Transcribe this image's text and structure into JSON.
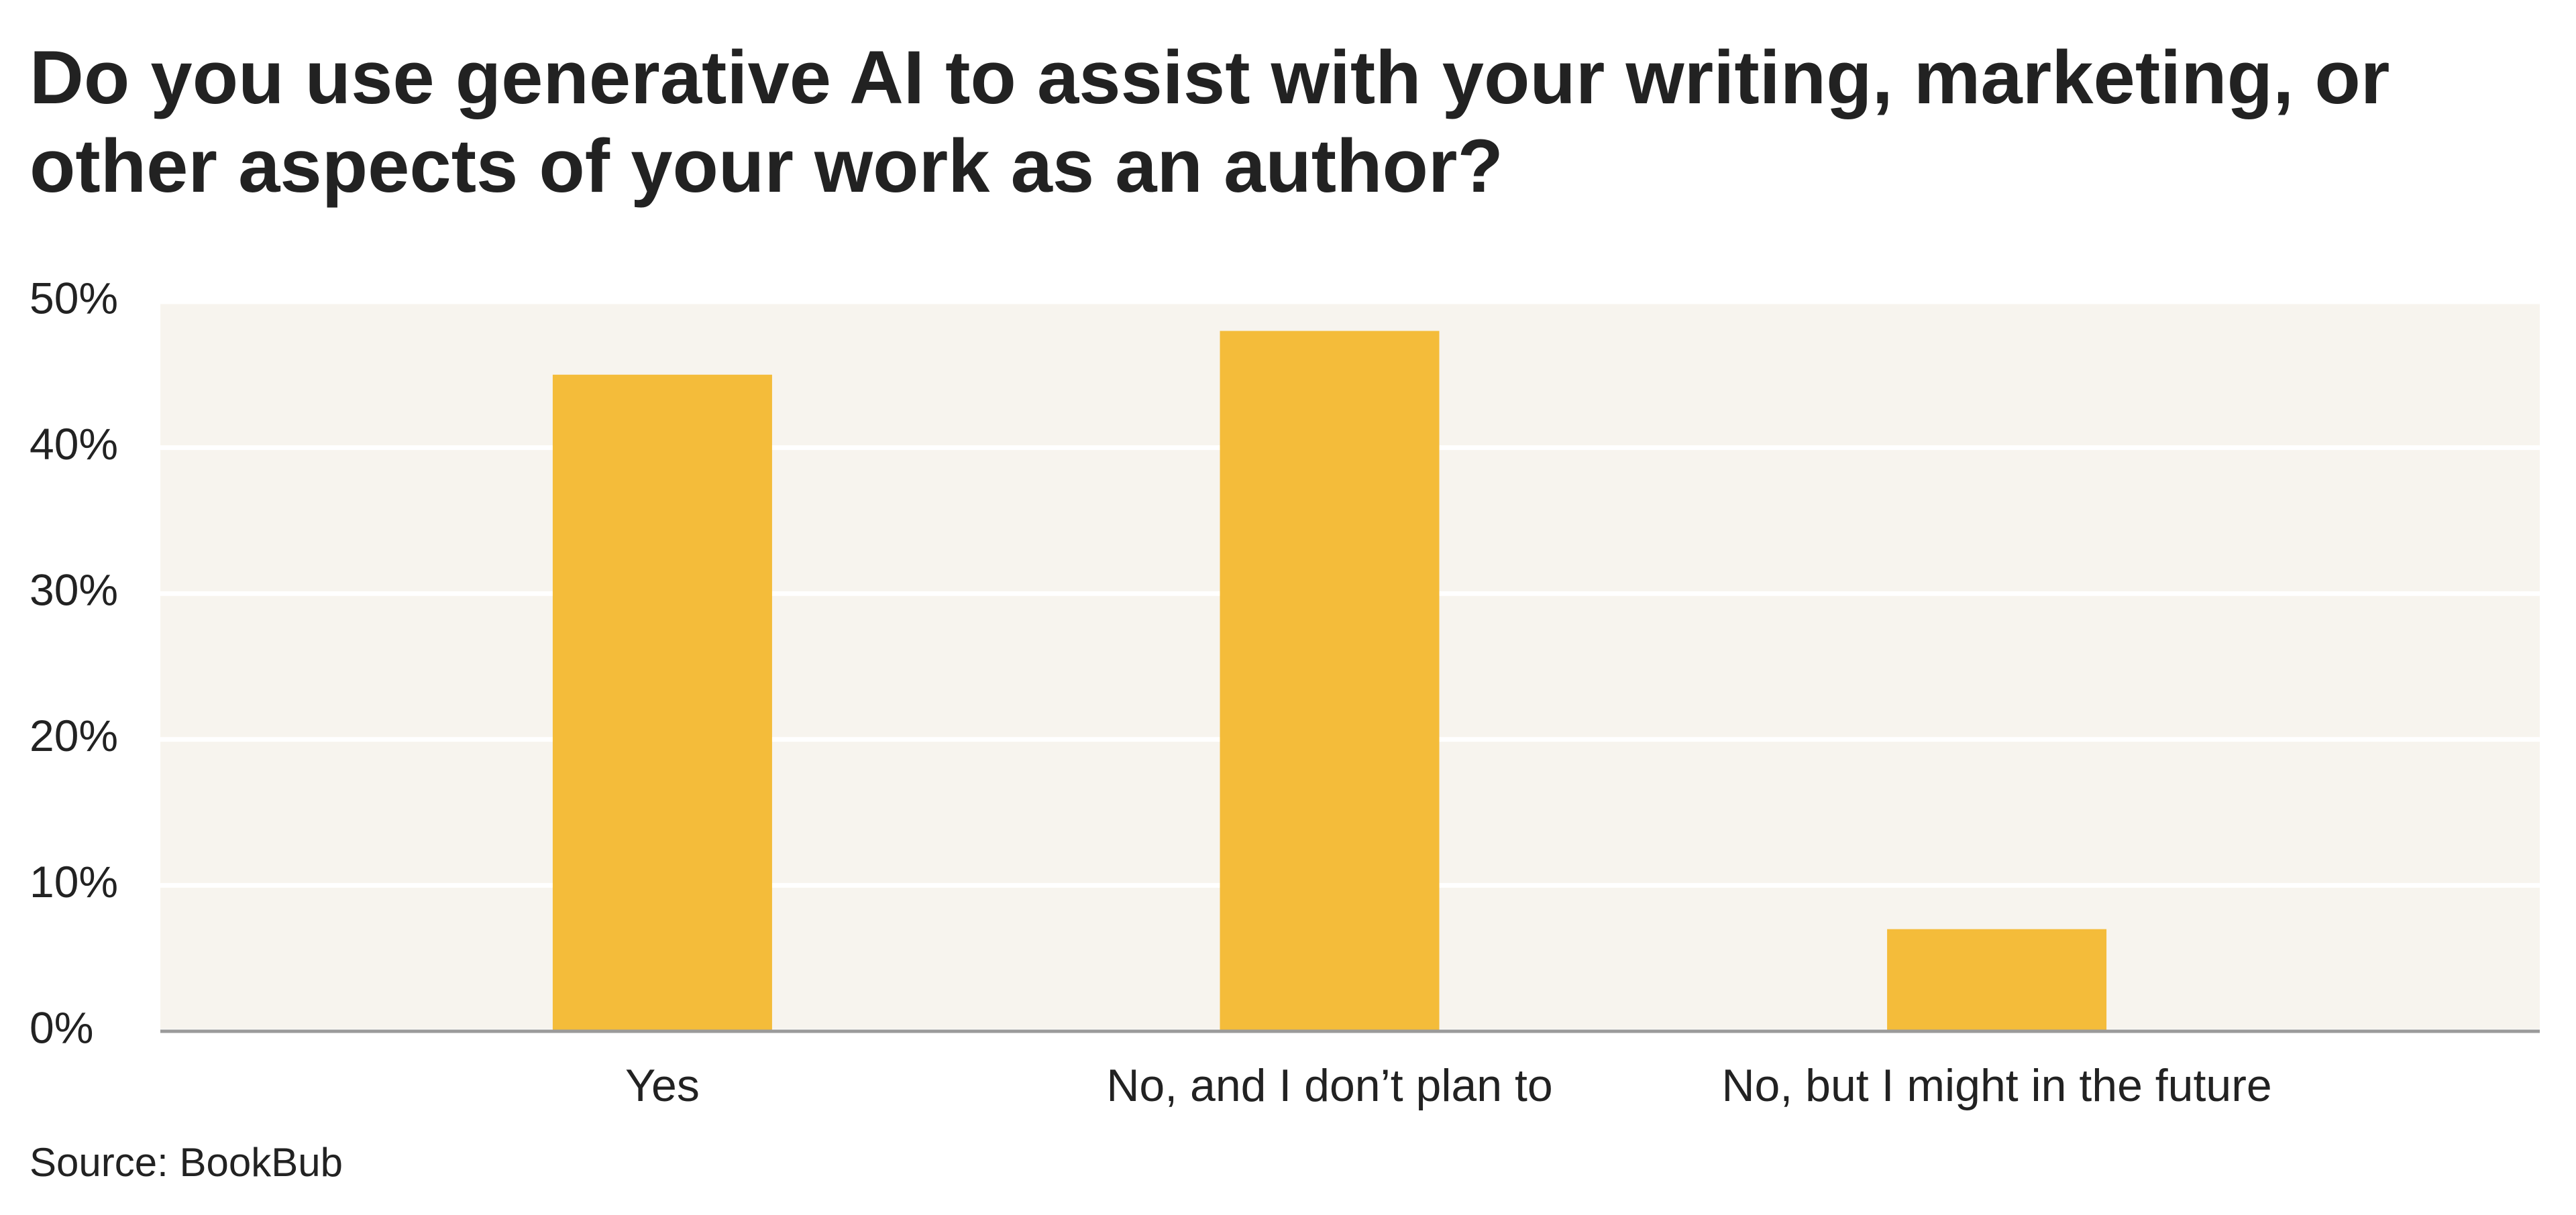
{
  "chart_data": {
    "type": "bar",
    "title": "Do you use generative AI to assist with your writing, marketing, or other aspects of your work as an author?",
    "categories": [
      "Yes",
      "No, and I don’t plan to",
      "No, but I might in the future"
    ],
    "values": [
      45,
      48,
      7
    ],
    "color": "#f4bc3a",
    "ylim": [
      0,
      50
    ],
    "yticks": [
      {
        "value": 0,
        "label": "0%"
      },
      {
        "value": 10,
        "label": "10%"
      },
      {
        "value": 20,
        "label": "20%"
      },
      {
        "value": 30,
        "label": "30%"
      },
      {
        "value": 40,
        "label": "40%"
      },
      {
        "value": 50,
        "label": "50%"
      }
    ],
    "grid": true,
    "source": "Source: BookBub"
  }
}
